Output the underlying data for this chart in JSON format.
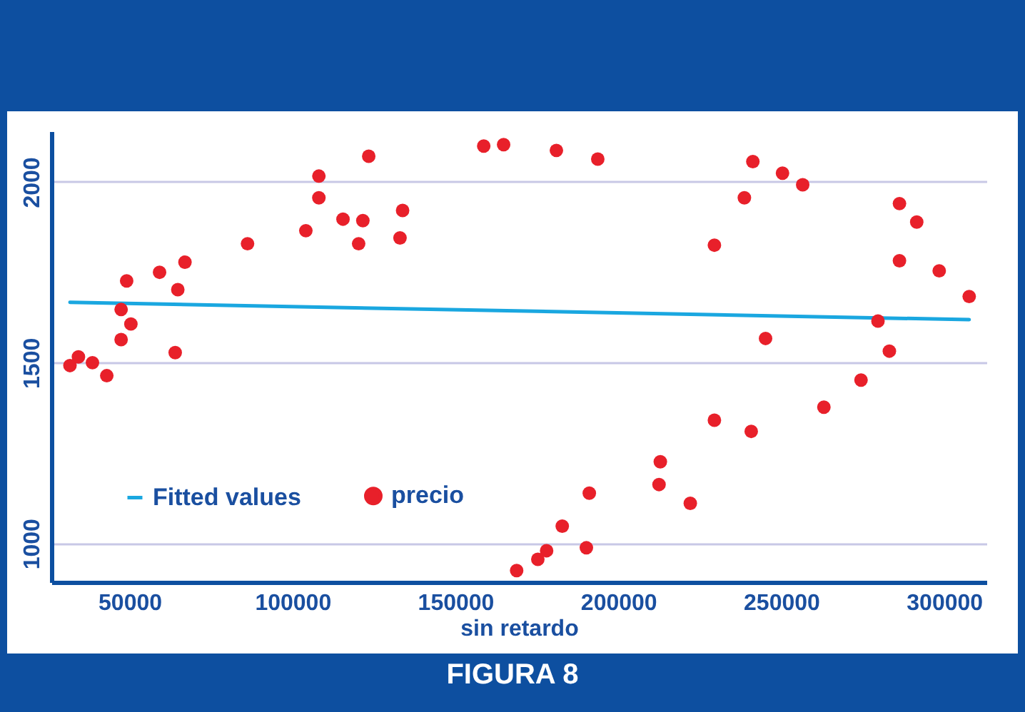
{
  "chart_data": {
    "type": "scatter",
    "title": "FIGURA 8",
    "xlabel": "sin retardo",
    "xlim": [
      26000,
      313000
    ],
    "ylim": [
      893,
      2140
    ],
    "xticks": [
      50000,
      100000,
      150000,
      200000,
      250000,
      300000
    ],
    "yticks": [
      1000,
      1500,
      2000
    ],
    "grid": "y",
    "legend": "bottom left",
    "series": [
      {
        "name": "Fitted values",
        "type": "line",
        "color": "#1aa7e0",
        "x": [
          31700,
          307700
        ],
        "values": [
          1667,
          1619
        ]
      },
      {
        "name": "precio",
        "marker": "circle",
        "color": "#e8202a",
        "x": [
          31700,
          34300,
          38600,
          43000,
          47400,
          47400,
          49100,
          50400,
          59200,
          64000,
          64800,
          67000,
          86200,
          104100,
          108100,
          108100,
          115500,
          121600,
          120300,
          123400,
          133000,
          133800,
          158700,
          164800,
          181000,
          193700,
          241300,
          250400,
          256600,
          238700,
          229500,
          286300,
          291600,
          286300,
          298500,
          307700,
          279700,
          283200,
          245200,
          274500,
          263100,
          229500,
          240800,
          212900,
          212500,
          222100,
          191100,
          182800,
          178000,
          175300,
          168800,
          190200
        ],
        "values": [
          1492,
          1516,
          1500,
          1464,
          1564,
          1647,
          1726,
          1607,
          1750,
          1528,
          1702,
          1778,
          1829,
          1865,
          2016,
          1956,
          1897,
          1893,
          1829,
          2071,
          1845,
          1921,
          2099,
          2103,
          2087,
          2063,
          2056,
          2024,
          1992,
          1956,
          1825,
          1940,
          1889,
          1782,
          1754,
          1683,
          1615,
          1532,
          1567,
          1452,
          1377,
          1341,
          1310,
          1226,
          1163,
          1111,
          1139,
          1048,
          980,
          956,
          925,
          988
        ]
      }
    ]
  }
}
